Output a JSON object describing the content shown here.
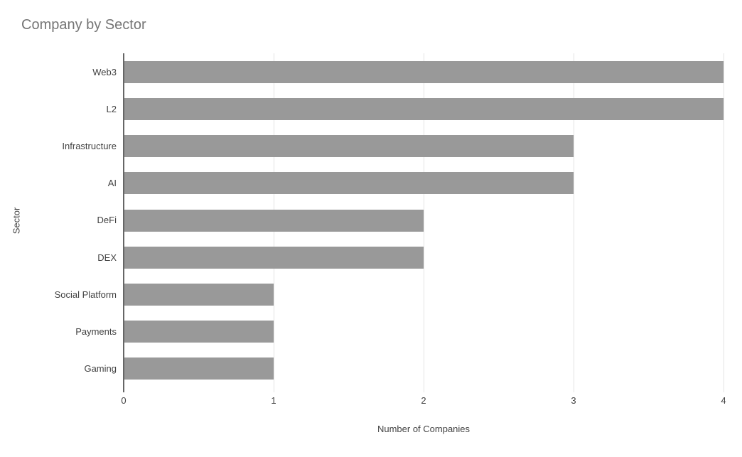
{
  "chart_data": {
    "type": "bar",
    "orientation": "horizontal",
    "title": "Company by Sector",
    "categories": [
      "Web3",
      "L2",
      "Infrastructure",
      "AI",
      "DeFi",
      "DEX",
      "Social Platform",
      "Payments",
      "Gaming"
    ],
    "values": [
      4,
      4,
      3,
      3,
      2,
      2,
      1,
      1,
      1
    ],
    "xlabel": "Number of Companies",
    "ylabel": "Sector",
    "xlim": [
      0,
      4
    ],
    "xticks": [
      0,
      1,
      2,
      3,
      4
    ],
    "grid": true,
    "legend": "none",
    "colors": {
      "bar": "#999999",
      "gridline": "#e3e3e3",
      "axis_line": "#666666",
      "title_text": "#757575",
      "tick_text": "#424242",
      "axis_title_text": "#444444",
      "background": "#ffffff"
    }
  }
}
